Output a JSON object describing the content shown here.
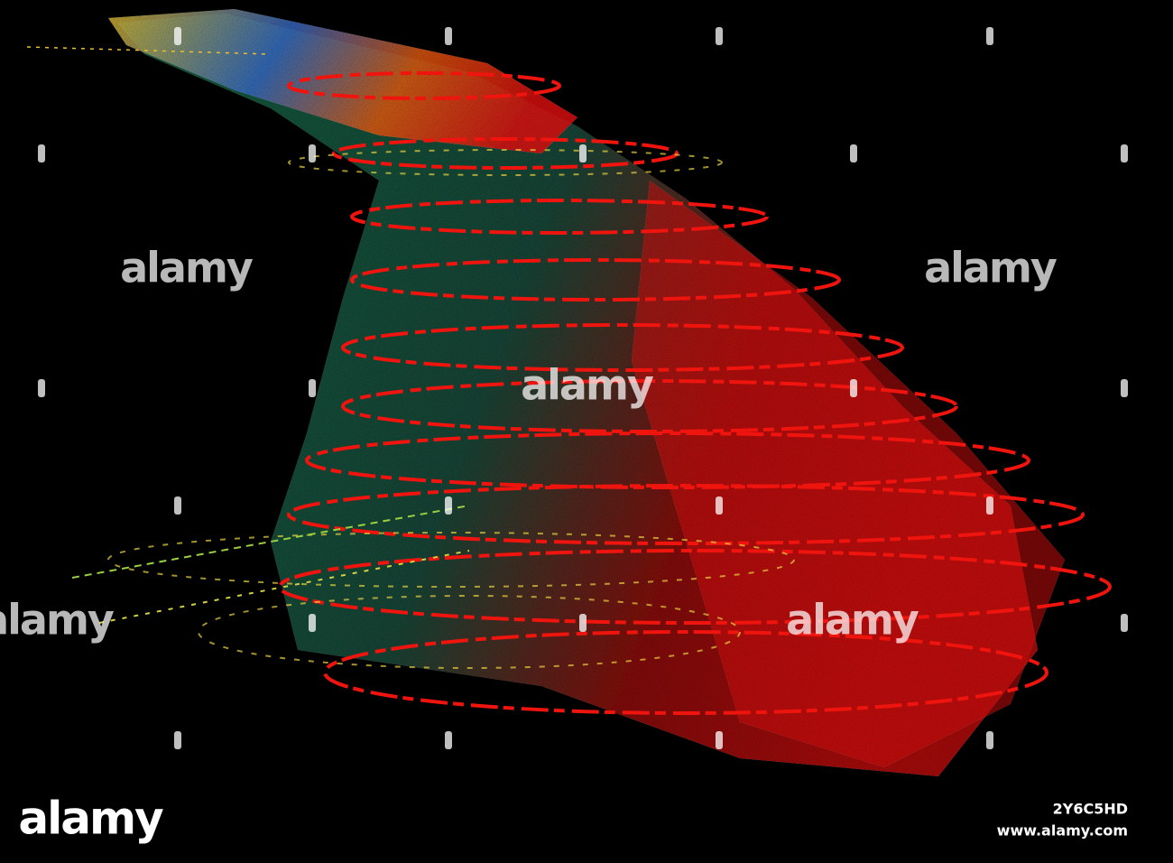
{
  "watermarks": [
    "alamy",
    "alamy",
    "alamy",
    "alamy",
    "alamy"
  ],
  "footer": {
    "logo": "alamy",
    "image_id": "2Y6C5HD",
    "site": "www.alamy.com"
  }
}
